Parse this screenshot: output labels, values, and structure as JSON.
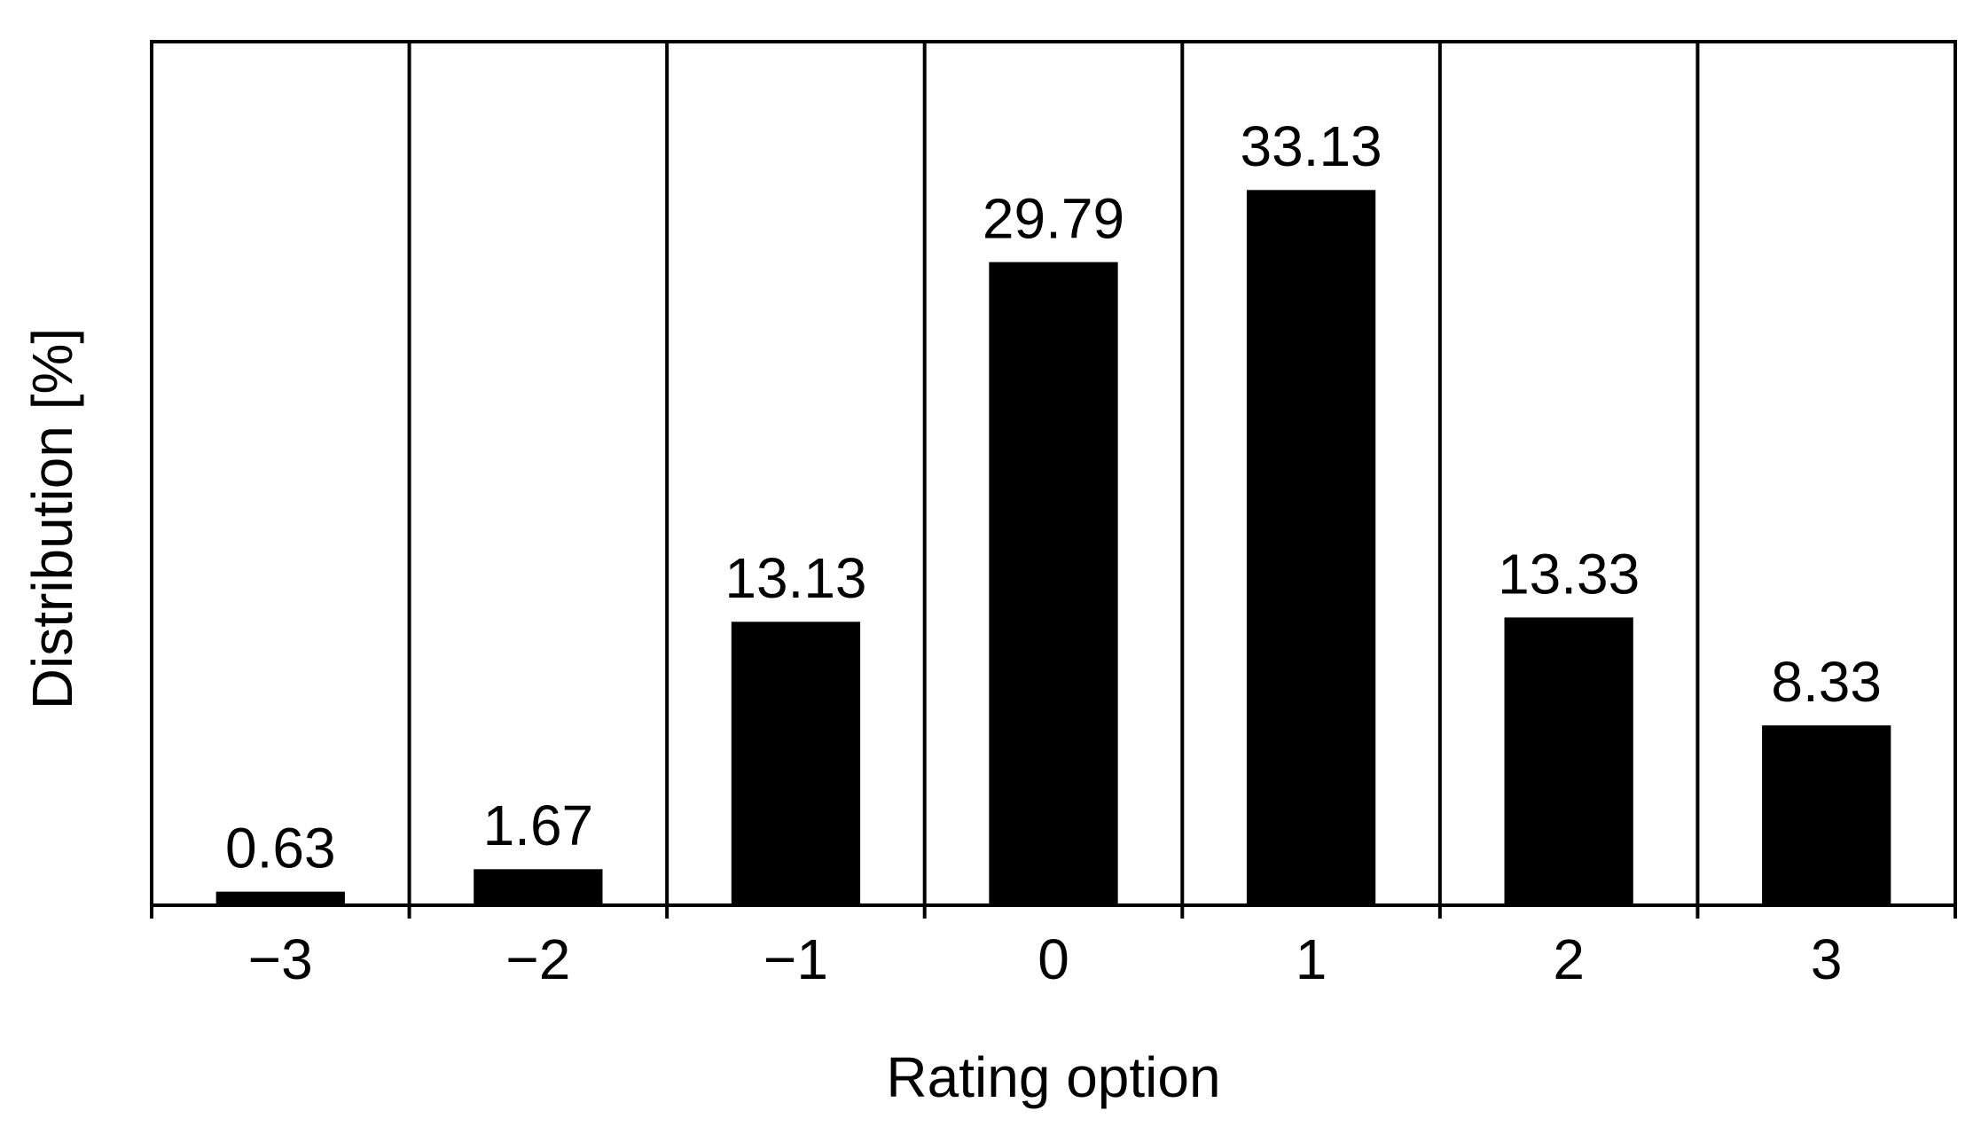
{
  "chart_data": {
    "type": "bar",
    "x_label": "Rating option",
    "y_label": "Distribution [%]",
    "categories": [
      "−3",
      "−2",
      "−1",
      "0",
      "1",
      "2",
      "3"
    ],
    "values": [
      0.63,
      1.67,
      13.13,
      29.79,
      33.13,
      13.33,
      8.33
    ],
    "color": "#000000",
    "ylim": [
      0,
      40
    ]
  }
}
